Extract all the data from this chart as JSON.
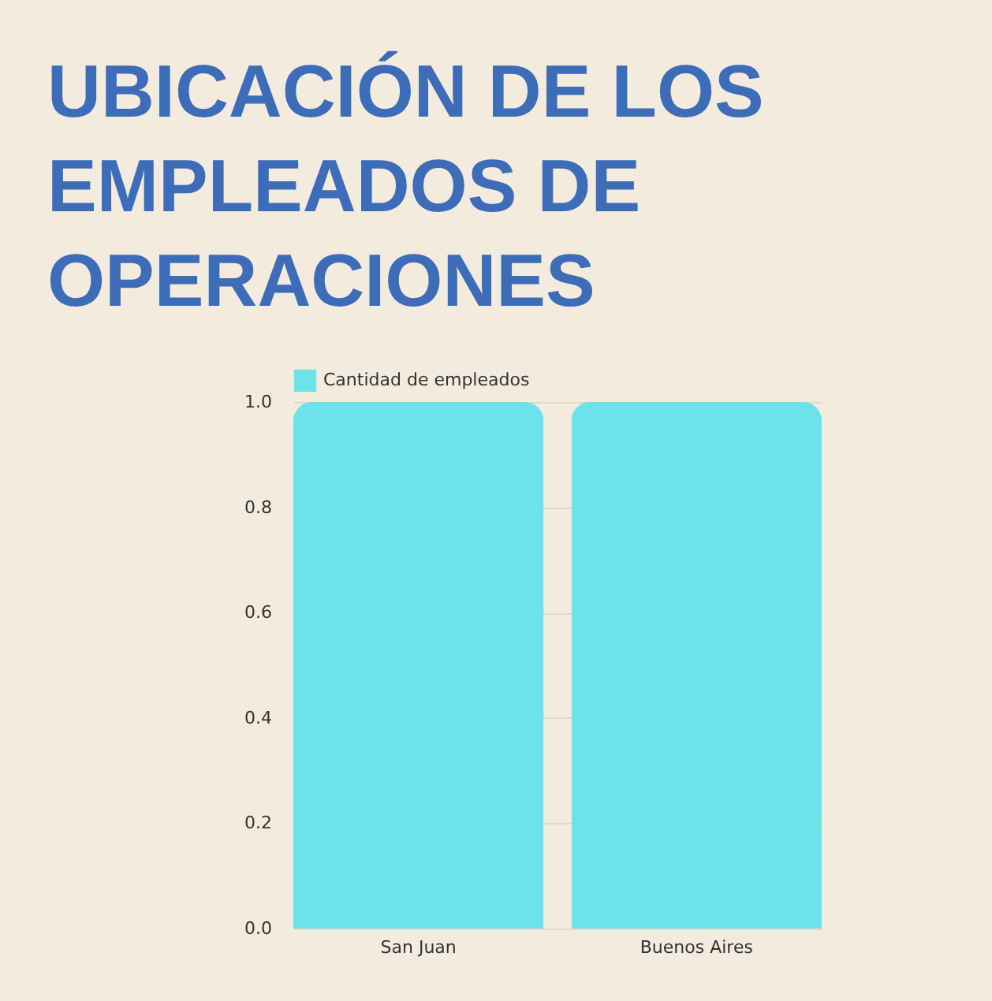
{
  "chart_data": {
    "type": "bar",
    "title": "UBICACIÓN DE LOS EMPLEADOS DE OPERACIONES",
    "categories": [
      "San Juan",
      "Buenos Aires"
    ],
    "series": [
      {
        "name": "Cantidad de empleados",
        "color": "#6ae3e9",
        "values": [
          1.0,
          1.0
        ]
      }
    ],
    "ylim": [
      0,
      1
    ],
    "yticks": [
      {
        "value": 0,
        "label": "0.0"
      },
      {
        "value": 0.2,
        "label": "0.2"
      },
      {
        "value": 0.4,
        "label": "0.4"
      },
      {
        "value": 0.6,
        "label": "0.6"
      },
      {
        "value": 0.8,
        "label": "0.8"
      },
      {
        "value": 1,
        "label": "1.0"
      }
    ],
    "grid": "y",
    "legend": "top"
  }
}
